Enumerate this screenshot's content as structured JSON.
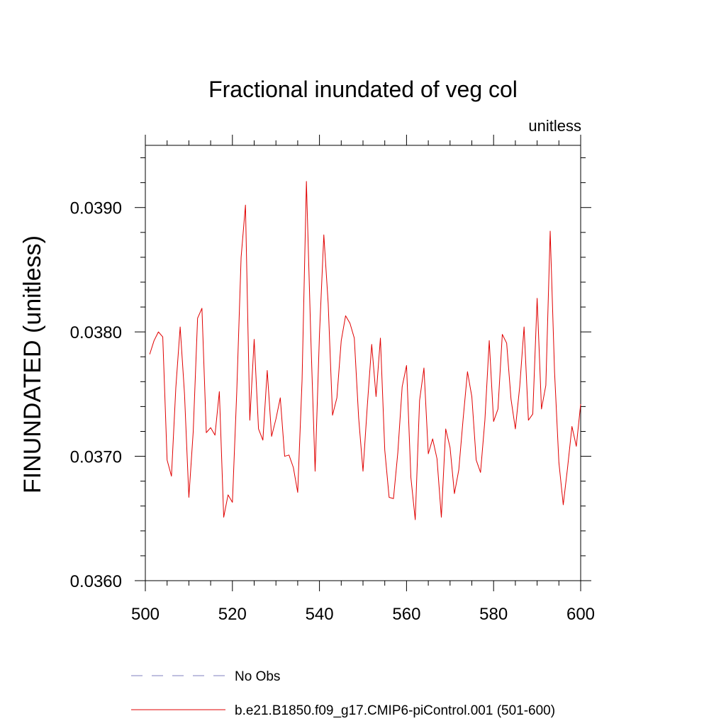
{
  "chart_data": {
    "type": "line",
    "title": "Fractional inundated of veg col",
    "units": "unitless",
    "ylabel": "FINUNDATED  (unitless)",
    "xlabel": "",
    "xlim": [
      500,
      600
    ],
    "ylim": [
      0.036,
      0.0395
    ],
    "xticks": [
      500,
      520,
      540,
      560,
      580,
      600
    ],
    "xtick_labels": [
      "500",
      "520",
      "540",
      "560",
      "580",
      "600"
    ],
    "yticks": [
      0.036,
      0.037,
      0.038,
      0.039
    ],
    "ytick_labels": [
      "0.0360",
      "0.0370",
      "0.0380",
      "0.0390"
    ],
    "grid": false,
    "legend_position": "bottom",
    "series": [
      {
        "name": "No Obs",
        "color": "#7f7fbf",
        "dash": "dashed",
        "x": [],
        "values": []
      },
      {
        "name": "b.e21.B1850.f09_g17.CMIP6-piControl.001 (501-600)",
        "color": "#e00000",
        "dash": "solid",
        "x": [
          501,
          502,
          503,
          504,
          505,
          506,
          507,
          508,
          509,
          510,
          511,
          512,
          513,
          514,
          515,
          516,
          517,
          518,
          519,
          520,
          521,
          522,
          523,
          524,
          525,
          526,
          527,
          528,
          529,
          530,
          531,
          532,
          533,
          534,
          535,
          536,
          537,
          538,
          539,
          540,
          541,
          542,
          543,
          544,
          545,
          546,
          547,
          548,
          549,
          550,
          551,
          552,
          553,
          554,
          555,
          556,
          557,
          558,
          559,
          560,
          561,
          562,
          563,
          564,
          565,
          566,
          567,
          568,
          569,
          570,
          571,
          572,
          573,
          574,
          575,
          576,
          577,
          578,
          579,
          580,
          581,
          582,
          583,
          584,
          585,
          586,
          587,
          588,
          589,
          590,
          591,
          592,
          593,
          594,
          595,
          596,
          597,
          598,
          599,
          600
        ],
        "values": [
          0.03782,
          0.03793,
          0.038,
          0.03796,
          0.03697,
          0.03684,
          0.03755,
          0.03804,
          0.0375,
          0.03667,
          0.0372,
          0.03811,
          0.03819,
          0.03719,
          0.03723,
          0.03717,
          0.03752,
          0.03651,
          0.03669,
          0.03663,
          0.03752,
          0.0386,
          0.03902,
          0.03729,
          0.03794,
          0.03722,
          0.03713,
          0.03769,
          0.03716,
          0.0373,
          0.03747,
          0.037,
          0.03701,
          0.03691,
          0.03671,
          0.03761,
          0.03921,
          0.03797,
          0.03688,
          0.03798,
          0.03878,
          0.03823,
          0.03733,
          0.03747,
          0.03793,
          0.03813,
          0.03807,
          0.03795,
          0.03731,
          0.03688,
          0.03741,
          0.0379,
          0.03748,
          0.03795,
          0.03705,
          0.03667,
          0.03666,
          0.03703,
          0.03756,
          0.03773,
          0.03683,
          0.03649,
          0.03745,
          0.03771,
          0.03702,
          0.03714,
          0.03698,
          0.03651,
          0.03722,
          0.03707,
          0.0367,
          0.03689,
          0.0373,
          0.03768,
          0.03748,
          0.03697,
          0.03687,
          0.03729,
          0.03793,
          0.03728,
          0.03738,
          0.03798,
          0.03791,
          0.03746,
          0.03722,
          0.03756,
          0.03804,
          0.03729,
          0.03734,
          0.03827,
          0.03738,
          0.03757,
          0.03881,
          0.03768,
          0.03695,
          0.03661,
          0.03691,
          0.03724,
          0.03708,
          0.03742
        ]
      }
    ]
  }
}
